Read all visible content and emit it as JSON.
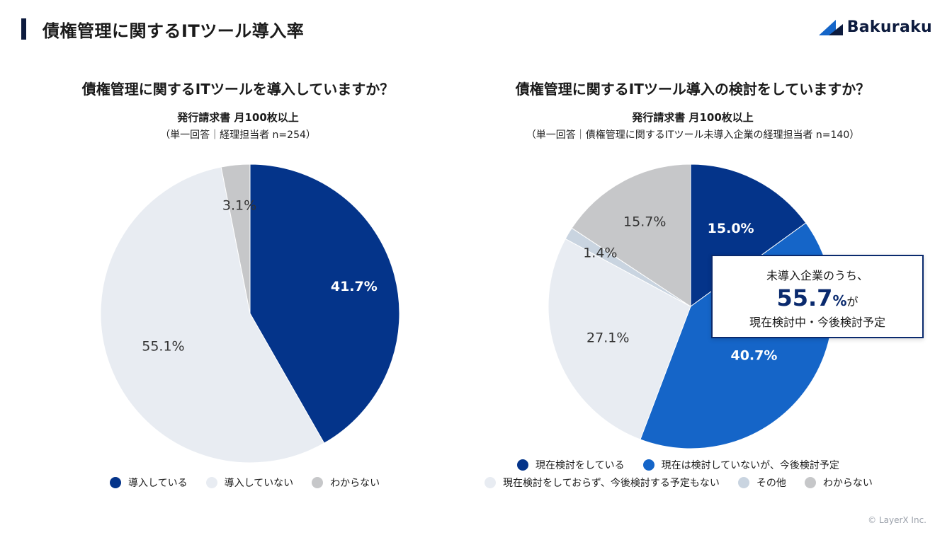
{
  "page": {
    "title": "債権管理に関するITツール導入率",
    "brand": "Bakuraku",
    "copyright": "© LayerX Inc."
  },
  "colors": {
    "dark_blue": "#04348a",
    "bright_blue": "#1565c8",
    "light_gray": "#e8ecf2",
    "pale_blue_gray": "#c9d4e0",
    "gray": "#c6c7c9"
  },
  "chart_data": [
    {
      "type": "pie",
      "title": "債権管理に関するITツールを導入していますか？",
      "subtitle": "発行請求書 月100枚以上",
      "note": "（単一回答｜経理担当者 n=254）",
      "slices": [
        {
          "name": "導入している",
          "value": 41.7,
          "label": "41.7%",
          "color": "#04348a",
          "label_style": "bold"
        },
        {
          "name": "導入していない",
          "value": 55.1,
          "label": "55.1%",
          "color": "#e8ecf2",
          "label_style": "dark"
        },
        {
          "name": "わからない",
          "value": 3.1,
          "label": "3.1%",
          "color": "#c6c7c9",
          "label_style": "dark"
        }
      ],
      "legend": [
        "導入している",
        "導入していない",
        "わからない"
      ]
    },
    {
      "type": "pie",
      "title": "債権管理に関するITツール導入の検討をしていますか？",
      "subtitle": "発行請求書 月100枚以上",
      "note": "（単一回答｜債権管理に関するITツール未導入企業の経理担当者 n=140）",
      "slices": [
        {
          "name": "現在検討をしている",
          "value": 15.0,
          "label": "15.0%",
          "color": "#04348a",
          "label_style": "bold"
        },
        {
          "name": "現在は検討していないが、今後検討予定",
          "value": 40.7,
          "label": "40.7%",
          "color": "#1565c8",
          "label_style": "bold"
        },
        {
          "name": "現在検討をしておらず、今後検討する予定もない",
          "value": 27.1,
          "label": "27.1%",
          "color": "#e8ecf2",
          "label_style": "dark"
        },
        {
          "name": "その他",
          "value": 1.4,
          "label": "1.4%",
          "color": "#c9d4e0",
          "label_style": "dark"
        },
        {
          "name": "わからない",
          "value": 15.7,
          "label": "15.7%",
          "color": "#c6c7c9",
          "label_style": "dark"
        }
      ],
      "legend": [
        "現在検討をしている",
        "現在は検討していないが、今後検討予定",
        "現在検討をしておらず、今後検討する予定もない",
        "その他",
        "わからない"
      ],
      "callout": {
        "line1": "未導入企業のうち、",
        "value": "55.7",
        "unit": "%",
        "suffix": "が",
        "line3": "現在検討中・今後検討予定"
      }
    }
  ]
}
